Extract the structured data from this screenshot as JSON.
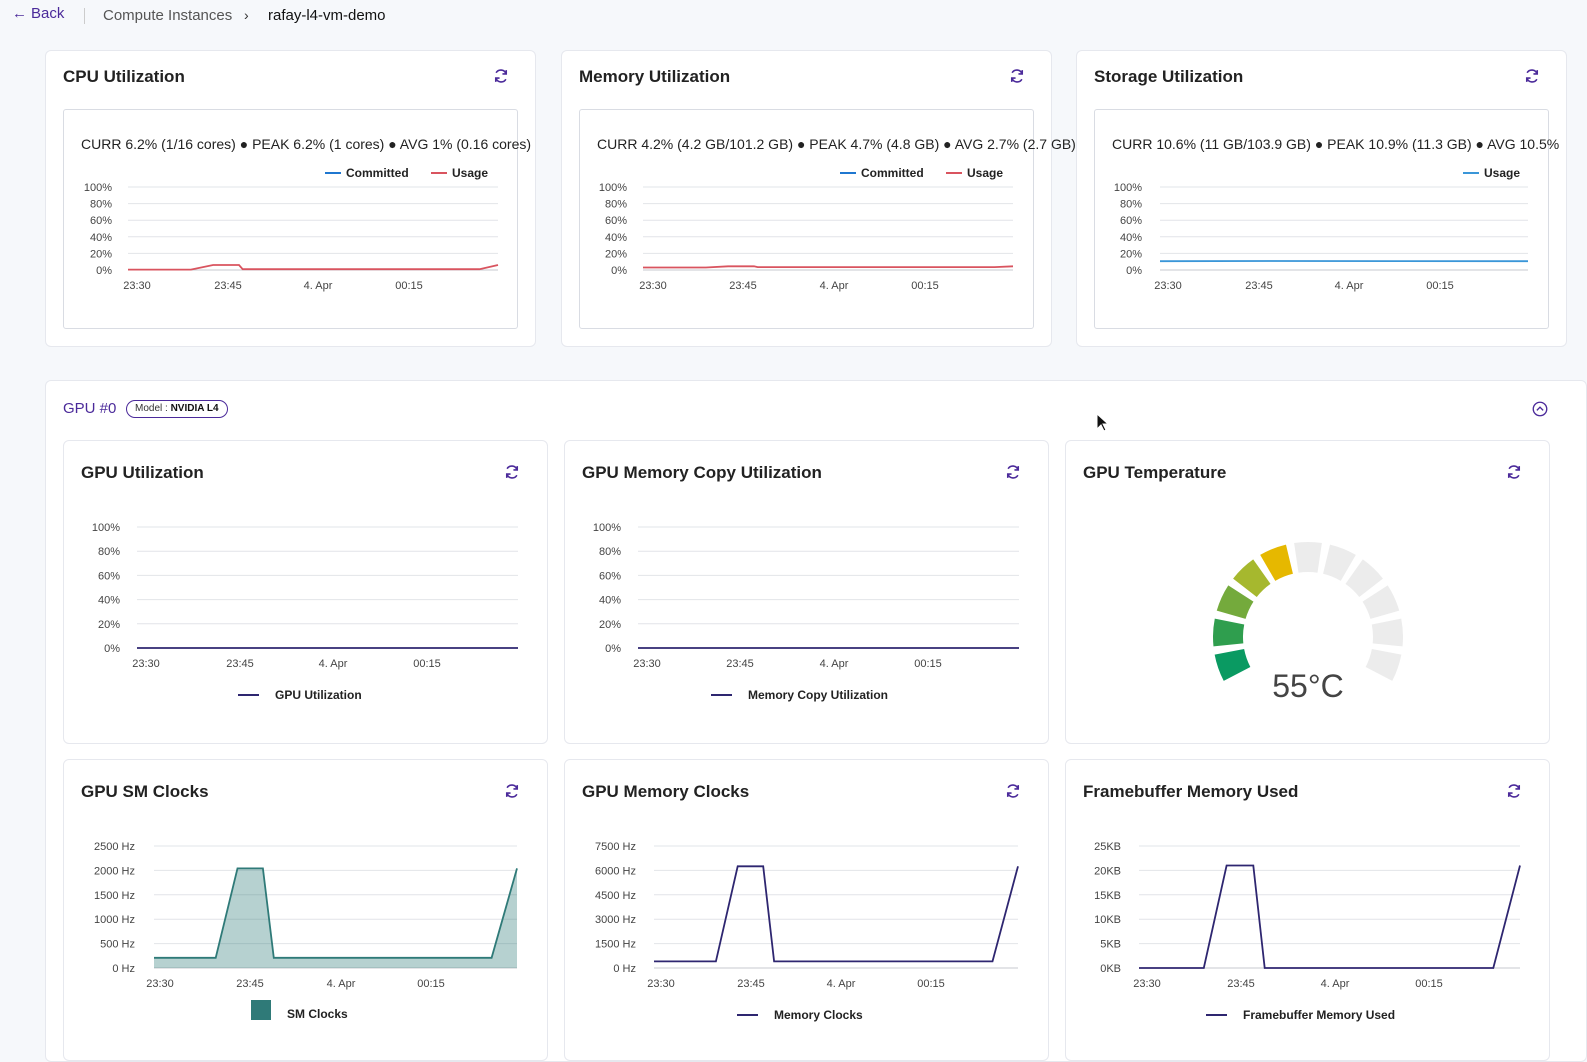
{
  "breadcrumb": {
    "back": "Back",
    "section": "Compute Instances",
    "current": "rafay-l4-vm-demo"
  },
  "colors": {
    "accent": "#4b2a9a",
    "committed": "#1f77d0",
    "usage": "#d9545f",
    "storage_usage": "#3a96d8",
    "gpu_line": "#2e2670",
    "sm_fill": "#2f7a78"
  },
  "x_ticks": [
    "23:30",
    "23:45",
    "4. Apr",
    "00:15"
  ],
  "cpu": {
    "title": "CPU Utilization",
    "stats": "CURR 6.2% (1/16 cores)  ●  PEAK 6.2% (1 cores)  ●  AVG 1% (0.16 cores)",
    "legend": [
      "Committed",
      "Usage"
    ]
  },
  "memory": {
    "title": "Memory Utilization",
    "stats": "CURR 4.2% (4.2 GB/101.2 GB)  ●  PEAK 4.7% (4.8 GB)  ●  AVG 2.7% (2.7 GB)",
    "legend": [
      "Committed",
      "Usage"
    ]
  },
  "storage": {
    "title": "Storage Utilization",
    "stats": "CURR 10.6% (11 GB/103.9 GB)  ●  PEAK 10.9% (11.3 GB)  ●  AVG 10.5%",
    "legend": [
      "Usage"
    ]
  },
  "gpu": {
    "title": "GPU #0",
    "model_label": "Model : ",
    "model": "NVIDIA L4"
  },
  "gpu_util": {
    "title": "GPU Utilization",
    "legend": "GPU Utilization"
  },
  "gpu_mem_copy": {
    "title": "GPU Memory Copy Utilization",
    "legend": "Memory Copy Utilization"
  },
  "gpu_temp": {
    "title": "GPU Temperature",
    "value": "55°C",
    "gauge_fraction": 0.45
  },
  "sm_clocks": {
    "title": "GPU SM Clocks",
    "legend": "SM Clocks"
  },
  "mem_clocks": {
    "title": "GPU Memory Clocks",
    "legend": "Memory Clocks"
  },
  "framebuffer": {
    "title": "Framebuffer Memory Used",
    "legend": "Framebuffer Memory Used"
  },
  "chart_data": [
    {
      "type": "line",
      "title": "CPU Utilization",
      "ylim": [
        0,
        100
      ],
      "y_ticks": [
        "0%",
        "20%",
        "40%",
        "60%",
        "80%",
        "100%"
      ],
      "x_ticks": [
        "23:30",
        "23:45",
        "4. Apr",
        "00:15"
      ],
      "series": [
        {
          "name": "Usage",
          "x": [
            0,
            0.17,
            0.23,
            0.3,
            0.31,
            0.6,
            0.95,
            1
          ],
          "values": [
            0.5,
            0.5,
            6,
            6,
            1,
            1,
            1,
            6
          ]
        }
      ]
    },
    {
      "type": "line",
      "title": "Memory Utilization",
      "ylim": [
        0,
        100
      ],
      "y_ticks": [
        "0%",
        "20%",
        "40%",
        "60%",
        "80%",
        "100%"
      ],
      "x_ticks": [
        "23:30",
        "23:45",
        "4. Apr",
        "00:15"
      ],
      "series": [
        {
          "name": "Usage",
          "x": [
            0,
            0.17,
            0.23,
            0.3,
            0.31,
            0.6,
            0.95,
            1
          ],
          "values": [
            3,
            3,
            4.5,
            4.5,
            3.5,
            3.5,
            3.5,
            4.5
          ]
        }
      ]
    },
    {
      "type": "line",
      "title": "Storage Utilization",
      "ylim": [
        0,
        100
      ],
      "y_ticks": [
        "0%",
        "20%",
        "40%",
        "60%",
        "80%",
        "100%"
      ],
      "x_ticks": [
        "23:30",
        "23:45",
        "4. Apr",
        "00:15"
      ],
      "series": [
        {
          "name": "Usage",
          "x": [
            0,
            0.3,
            1
          ],
          "values": [
            10.6,
            10.8,
            10.6
          ]
        }
      ]
    },
    {
      "type": "line",
      "title": "GPU Utilization",
      "ylim": [
        0,
        100
      ],
      "y_ticks": [
        "0%",
        "20%",
        "40%",
        "60%",
        "80%",
        "100%"
      ],
      "x_ticks": [
        "23:30",
        "23:45",
        "4. Apr",
        "00:15"
      ],
      "series": [
        {
          "name": "GPU Utilization",
          "x": [
            0,
            1
          ],
          "values": [
            0,
            0
          ]
        }
      ]
    },
    {
      "type": "line",
      "title": "GPU Memory Copy Utilization",
      "ylim": [
        0,
        100
      ],
      "y_ticks": [
        "0%",
        "20%",
        "40%",
        "60%",
        "80%",
        "100%"
      ],
      "x_ticks": [
        "23:30",
        "23:45",
        "4. Apr",
        "00:15"
      ],
      "series": [
        {
          "name": "Memory Copy Utilization",
          "x": [
            0,
            1
          ],
          "values": [
            0,
            0
          ]
        }
      ]
    },
    {
      "type": "area",
      "title": "GPU SM Clocks",
      "ylim": [
        0,
        2500
      ],
      "y_ticks": [
        "0 Hz",
        "500 Hz",
        "1000 Hz",
        "1500 Hz",
        "2000 Hz",
        "2500 Hz"
      ],
      "x_ticks": [
        "23:30",
        "23:45",
        "4. Apr",
        "00:15"
      ],
      "series": [
        {
          "name": "SM Clocks",
          "x": [
            0,
            0.17,
            0.23,
            0.3,
            0.33,
            0.93,
            1
          ],
          "values": [
            210,
            210,
            2040,
            2040,
            210,
            210,
            2040
          ]
        }
      ]
    },
    {
      "type": "line",
      "title": "GPU Memory Clocks",
      "ylim": [
        0,
        7500
      ],
      "y_ticks": [
        "0 Hz",
        "1500 Hz",
        "3000 Hz",
        "4500 Hz",
        "6000 Hz",
        "7500 Hz"
      ],
      "x_ticks": [
        "23:30",
        "23:45",
        "4. Apr",
        "00:15"
      ],
      "series": [
        {
          "name": "Memory Clocks",
          "x": [
            0,
            0.17,
            0.23,
            0.3,
            0.33,
            0.93,
            1
          ],
          "values": [
            405,
            405,
            6250,
            6250,
            405,
            405,
            6250
          ]
        }
      ]
    },
    {
      "type": "line",
      "title": "Framebuffer Memory Used",
      "ylim": [
        0,
        25
      ],
      "y_ticks": [
        "0KB",
        "5KB",
        "10KB",
        "15KB",
        "20KB",
        "25KB"
      ],
      "x_ticks": [
        "23:30",
        "23:45",
        "4. Apr",
        "00:15"
      ],
      "series": [
        {
          "name": "Framebuffer Memory Used",
          "x": [
            0,
            0.17,
            0.23,
            0.3,
            0.33,
            0.93,
            1
          ],
          "values": [
            0,
            0,
            21,
            21,
            0,
            0,
            21
          ]
        }
      ]
    }
  ]
}
